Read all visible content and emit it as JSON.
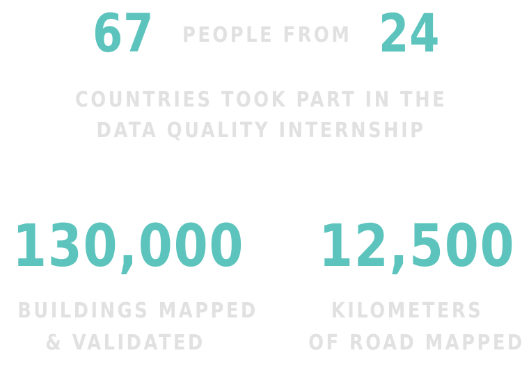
{
  "colors": {
    "accent": "#5cc4bd",
    "muted": "#e1e1e1"
  },
  "headline": {
    "people_count": "67",
    "people_label": "PEOPLE FROM",
    "countries_count": "24",
    "description_lines": [
      "COUNTRIES TOOK PART IN THE",
      "DATA QUALITY INTERNSHIP"
    ]
  },
  "stats": [
    {
      "value": "130,000",
      "caption_lines": [
        "BUILDINGS MAPPED",
        "& VALIDATED"
      ]
    },
    {
      "value": "12,500",
      "caption_lines": [
        "KILOMETERS",
        "OF ROAD MAPPED"
      ]
    }
  ]
}
